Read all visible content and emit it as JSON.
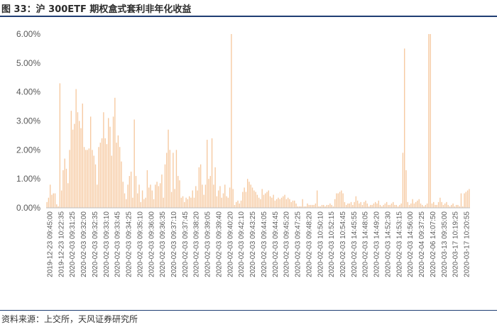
{
  "header": {
    "title": "图 33：沪 300ETF 期权盒式套利非年化收益"
  },
  "footer": {
    "source": "资料来源：上交所，天风证券研究所"
  },
  "colors": {
    "bar": "#F6C9A0",
    "axis": "#BFBFBF",
    "rule": "#1F3E73"
  },
  "chart_data": {
    "type": "bar",
    "title": "沪 300ETF 期权盒式套利非年化收益",
    "xlabel": "",
    "ylabel": "",
    "ylim": [
      0,
      6
    ],
    "unit": "%",
    "ytick_labels": [
      "0.00%",
      "1.00%",
      "2.00%",
      "3.00%",
      "4.00%",
      "5.00%",
      "6.00%"
    ],
    "xtick_labels": [
      "2019-12-23 09:45:00",
      "2019-12-23 10:22:35",
      "2020-02-03 09:31:25",
      "2020-02-03 09:32:00",
      "2020-02-03 09:32:35",
      "2020-02-03 09:33:10",
      "2020-02-03 09:33:45",
      "2020-02-03 09:34:25",
      "2020-02-03 09:35:10",
      "2020-02-03 09:36:00",
      "2020-02-03 09:36:35",
      "2020-02-03 09:37:10",
      "2020-02-03 09:37:45",
      "2020-02-03 09:38:20",
      "2020-02-03 09:39:05",
      "2020-02-03 09:39:40",
      "2020-02-03 09:40:20",
      "2020-02-03 09:42:10",
      "2020-02-03 09:43:25",
      "2020-02-03 09:44:05",
      "2020-02-03 09:44:45",
      "2020-02-03 09:45:20",
      "2020-02-03 09:47:25",
      "2020-02-03 09:48:20",
      "2020-02-03 10:50:10",
      "2020-02-03 10:52:15",
      "2020-02-03 10:54:45",
      "2020-02-03 14:45:55",
      "2020-02-03 14:48:05",
      "2020-02-03 14:49:20",
      "2020-02-03 14:52:30",
      "2020-02-03 14:53:15",
      "2020-02-03 14:56:00",
      "2020-02-04 09:37:25",
      "2020-02-06 14:07:50",
      "2020-03-13 09:35:00",
      "2020-03-17 10:19:25",
      "2020-03-17 10:20:55"
    ],
    "values": [
      0.2,
      0.35,
      0.8,
      0.45,
      0.5,
      0.5,
      0.12,
      0.05,
      4.3,
      0.6,
      1.3,
      1.7,
      1.35,
      0.85,
      2.0,
      3.35,
      2.7,
      2.9,
      4.1,
      3.3,
      3.0,
      2.75,
      3.6,
      2.1,
      2.0,
      2.0,
      2.05,
      3.15,
      2.0,
      1.8,
      1.5,
      0.8,
      2.1,
      2.25,
      2.4,
      3.3,
      2.4,
      2.2,
      3.1,
      2.8,
      1.8,
      3.15,
      3.8,
      2.25,
      2.5,
      2.1,
      1.6,
      0.9,
      0.5,
      0.3,
      0.8,
      1.1,
      1.25,
      0.35,
      3.05,
      1.1,
      0.5,
      0.8,
      0.2,
      0.6,
      0.3,
      0.35,
      1.3,
      0.7,
      0.8,
      0.6,
      0.3,
      0.8,
      0.9,
      0.75,
      0.85,
      1.15,
      0.35,
      1.5,
      1.9,
      2.7,
      2.0,
      0.55,
      1.9,
      0.65,
      2.0,
      1.1,
      0.95,
      0.35,
      0.4,
      0.2,
      0.35,
      0.3,
      0.4,
      0.35,
      0.6,
      0.35,
      0.75,
      0.6,
      1.4,
      1.5,
      0.8,
      0.45,
      0.8,
      2.35,
      1.0,
      1.1,
      2.4,
      0.8,
      1.4,
      0.4,
      0.6,
      0.75,
      0.35,
      0.5,
      0.8,
      0.4,
      0.35,
      0.7,
      6.0,
      0.65,
      0.1,
      0.2,
      0.25,
      0.15,
      0.25,
      0.55,
      0.7,
      0.55,
      1.0,
      0.9,
      0.8,
      0.7,
      0.6,
      0.55,
      0.45,
      0.35,
      0.3,
      0.65,
      0.45,
      0.5,
      0.55,
      0.6,
      0.4,
      0.35,
      0.45,
      0.25,
      0.3,
      0.35,
      0.3,
      0.35,
      0.4,
      0.45,
      0.3,
      0.35,
      0.3,
      0.2,
      0.25,
      0.25,
      0.15,
      0.05,
      0.05,
      0.05,
      0.3,
      0.05,
      0.05,
      0.15,
      0.1,
      0.1,
      0.1,
      0.1,
      0.15,
      0.6,
      0.05,
      0.05,
      0.1,
      0.1,
      0.05,
      0.1,
      0.1,
      0.15,
      0.1,
      0.05,
      0.3,
      0.5,
      0.5,
      0.55,
      0.6,
      0.5,
      0.2,
      0.1,
      0.15,
      0.15,
      0.2,
      0.1,
      0.2,
      0.4,
      0.25,
      0.15,
      0.2,
      0.1,
      0.2,
      0.25,
      0.15,
      0.05,
      0.1,
      0.1,
      0.15,
      0.2,
      0.15,
      0.25,
      0.1,
      0.05,
      0.1,
      0.15,
      0.2,
      0.1,
      0.1,
      0.15,
      0.2,
      0.1,
      0.1,
      0.05,
      0.1,
      0.15,
      1.9,
      5.5,
      1.3,
      0.2,
      0.1,
      0.15,
      0.3,
      0.15,
      0.2,
      0.25,
      0.3,
      0.15,
      0.1,
      0.05,
      0.1,
      0.15,
      6.0,
      6.0,
      0.15,
      0.2,
      0.1,
      0.1,
      0.2,
      0.35,
      0.2,
      0.1,
      0.15,
      0.2,
      0.1,
      0.05,
      0.1,
      0.15,
      0.05,
      0.1,
      0.1,
      0.05,
      0.5,
      0.05,
      0.5,
      0.55,
      0.6,
      0.65
    ]
  }
}
